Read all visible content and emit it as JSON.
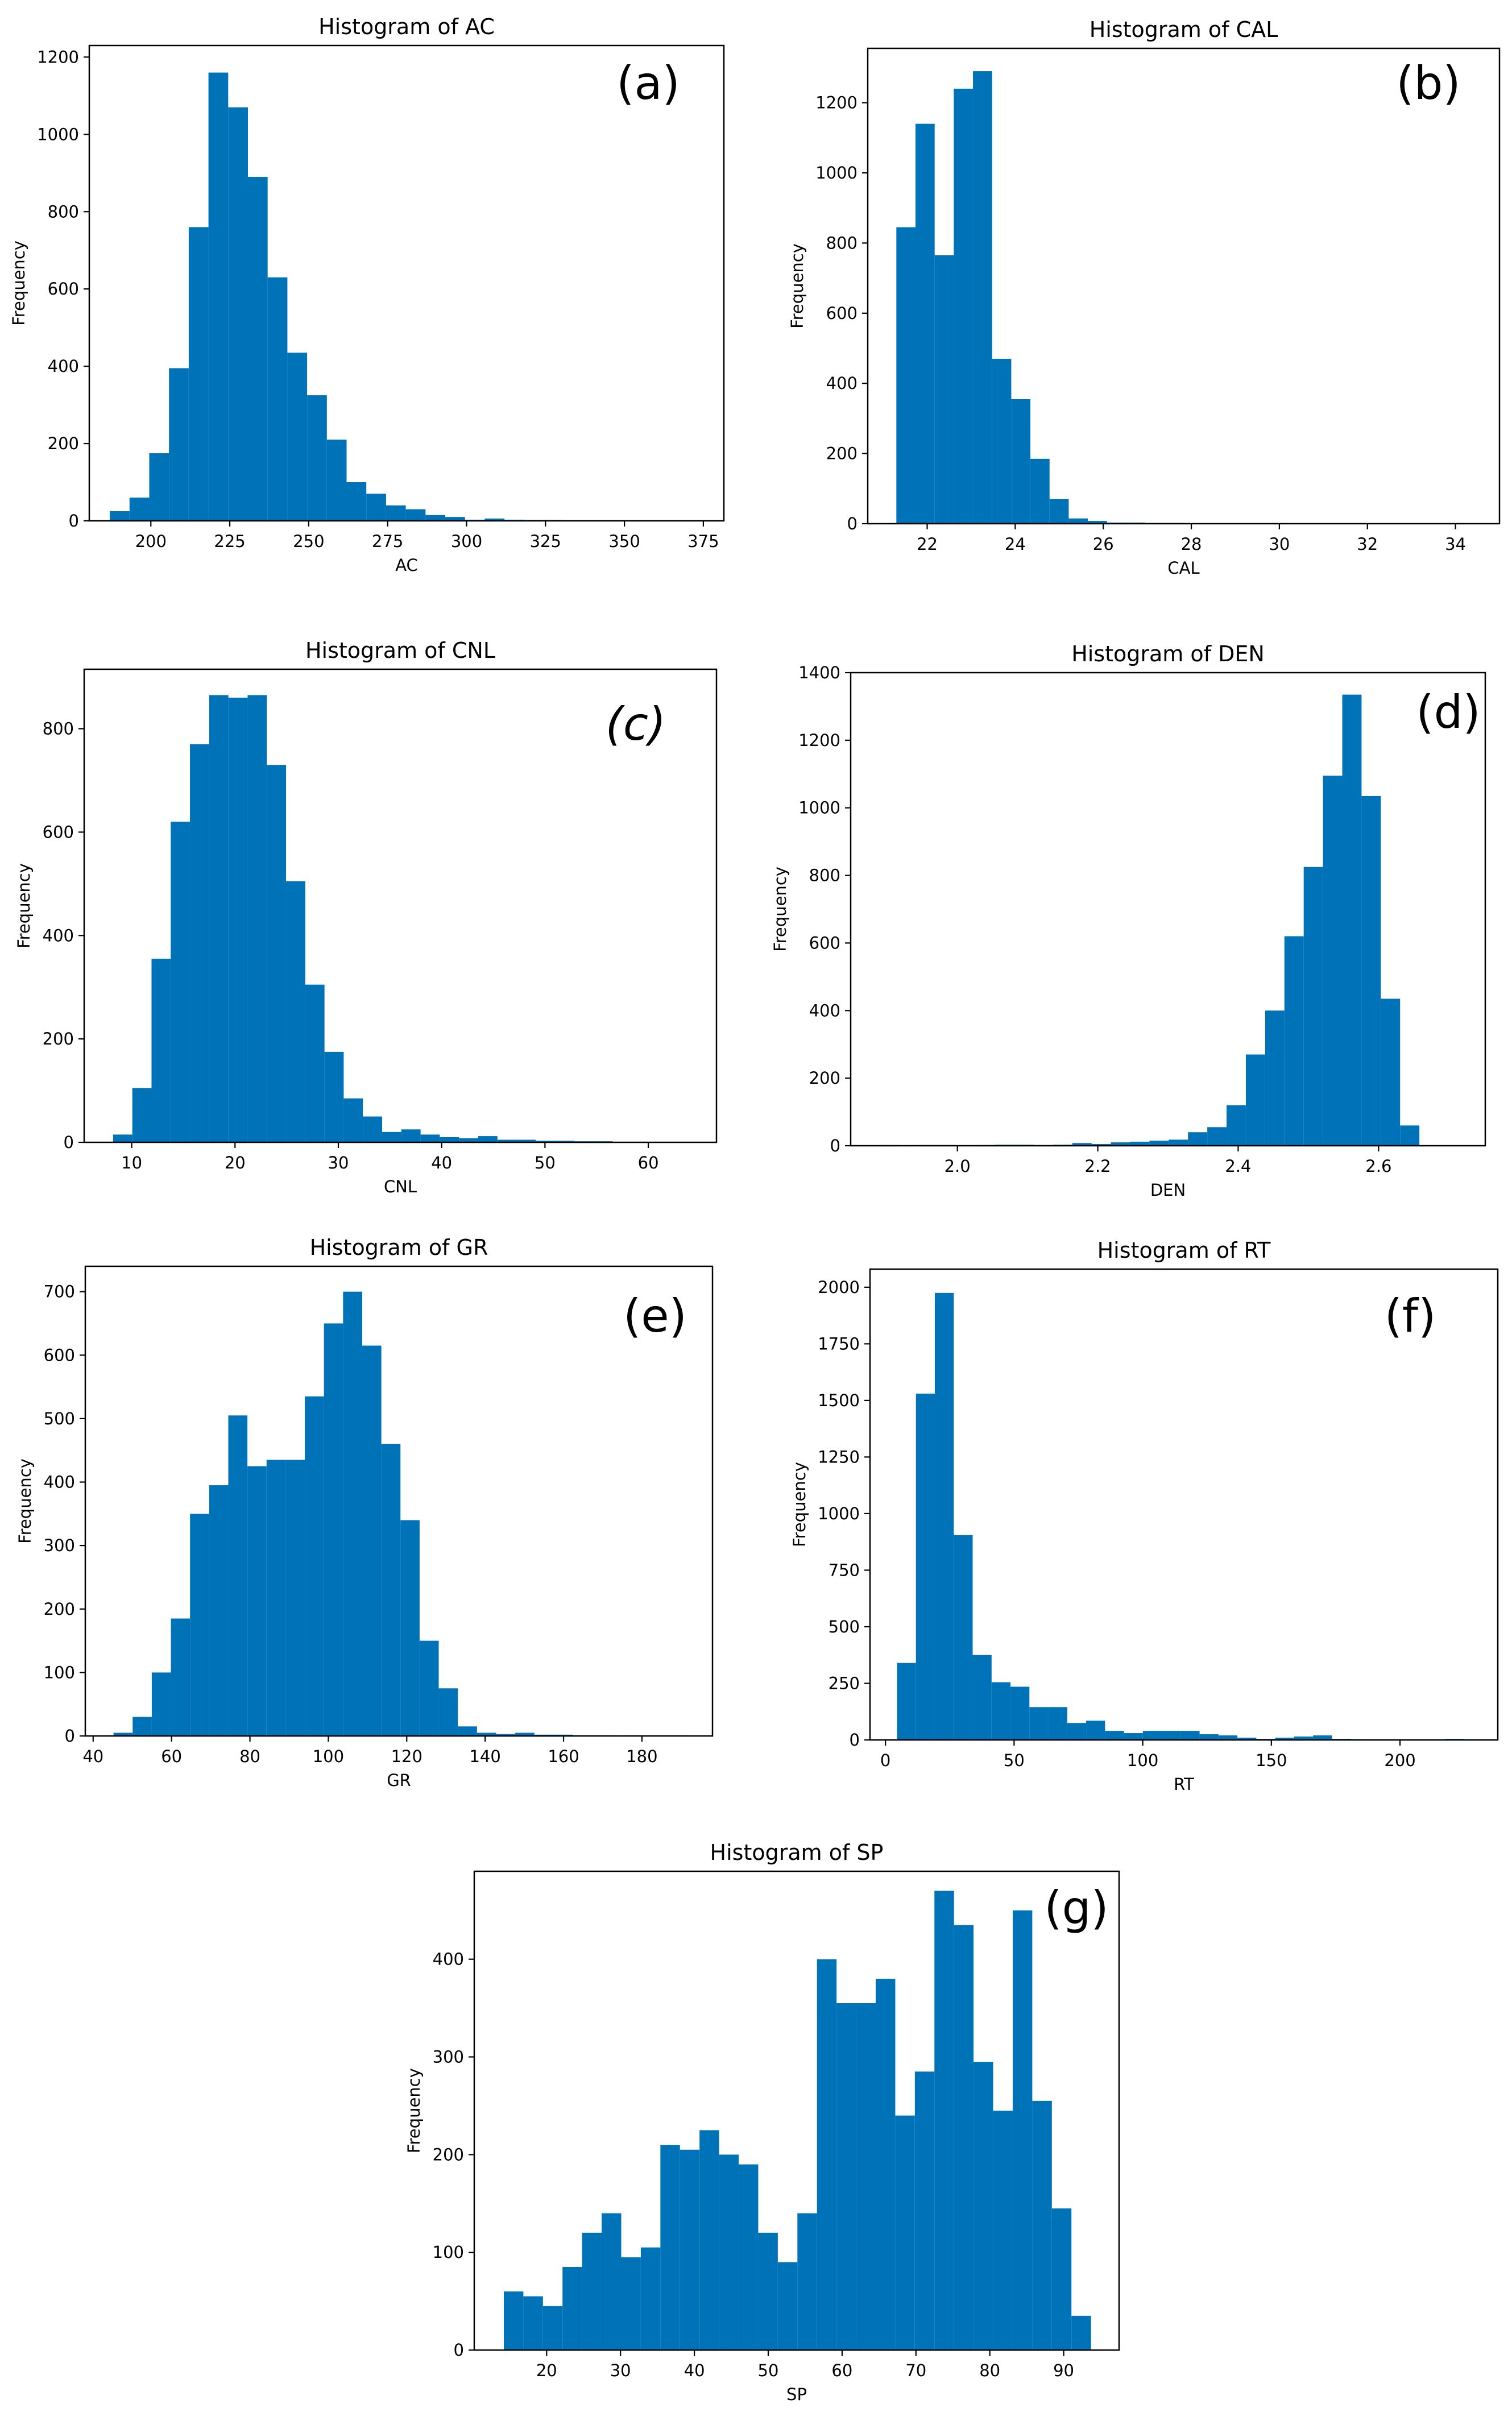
{
  "figure": {
    "bar_color": "#0072b8",
    "frame_color": "#000000"
  },
  "chart_data": [
    {
      "type": "bar",
      "id": "ac",
      "title": "Histogram of AC",
      "xlabel": "AC",
      "ylabel": "Frequency",
      "panel_label": "(a)",
      "xlim": [
        180.5,
        381.5
      ],
      "ylim": [
        0,
        1230
      ],
      "bins_start": 187,
      "bin_width": 6.25,
      "values": [
        25,
        60,
        175,
        395,
        760,
        1160,
        1070,
        890,
        630,
        435,
        325,
        210,
        100,
        70,
        40,
        30,
        15,
        10,
        3,
        6,
        3,
        2,
        2,
        1,
        1,
        1,
        0,
        0,
        0,
        1
      ],
      "xticks": [
        200,
        225,
        250,
        275,
        300,
        325,
        350,
        375
      ],
      "yticks": [
        0,
        200,
        400,
        600,
        800,
        1000,
        1200
      ]
    },
    {
      "type": "bar",
      "id": "cal",
      "title": "Histogram of CAL",
      "xlabel": "CAL",
      "ylabel": "Frequency",
      "panel_label": "(b)",
      "xlim": [
        20.65,
        35.0
      ],
      "ylim": [
        0,
        1355
      ],
      "bins_start": 21.3,
      "bin_width": 0.435,
      "values": [
        845,
        1140,
        765,
        1240,
        1290,
        470,
        355,
        185,
        70,
        15,
        8,
        3,
        3,
        2,
        2,
        1,
        1,
        1,
        0,
        1,
        0,
        1,
        1,
        1,
        1,
        0,
        0,
        1,
        1,
        1
      ],
      "xticks": [
        22,
        24,
        26,
        28,
        30,
        32,
        34
      ],
      "yticks": [
        0,
        200,
        400,
        600,
        800,
        1000,
        1200
      ]
    },
    {
      "type": "bar",
      "id": "cnl",
      "title": "Histogram of CNL",
      "xlabel": "CNL",
      "ylabel": "Frequency",
      "panel_label": "(c)",
      "xlim": [
        5.4,
        66.6
      ],
      "ylim": [
        0,
        915
      ],
      "bins_start": 8.2,
      "bin_width": 1.86,
      "values": [
        15,
        105,
        355,
        620,
        770,
        865,
        860,
        865,
        730,
        505,
        305,
        175,
        85,
        50,
        20,
        25,
        15,
        10,
        8,
        12,
        5,
        5,
        3,
        3,
        2,
        2,
        1,
        1,
        0,
        1
      ],
      "xticks": [
        10,
        20,
        30,
        40,
        50,
        60
      ],
      "yticks": [
        0,
        200,
        400,
        600,
        800
      ]
    },
    {
      "type": "bar",
      "id": "den",
      "title": "Histogram of DEN",
      "xlabel": "DEN",
      "ylabel": "Frequency",
      "panel_label": "(d)",
      "xlim": [
        1.848,
        2.752
      ],
      "ylim": [
        0,
        1400
      ],
      "bins_start": 1.889,
      "bin_width": 0.02747,
      "values": [
        2,
        1,
        2,
        2,
        1,
        2,
        3,
        3,
        2,
        3,
        8,
        5,
        10,
        12,
        15,
        18,
        40,
        55,
        120,
        270,
        400,
        620,
        825,
        1095,
        1335,
        1035,
        435,
        60,
        0,
        0
      ],
      "xticks": [
        2.0,
        2.2,
        2.4,
        2.6
      ],
      "ytick_labels": [
        "0",
        "200",
        "400",
        "600",
        "800",
        "1000",
        "1200",
        "1400"
      ],
      "yticks": [
        0,
        200,
        400,
        600,
        800,
        1000,
        1200,
        1400
      ]
    },
    {
      "type": "bar",
      "id": "gr",
      "title": "Histogram of GR",
      "xlabel": "GR",
      "ylabel": "Frequency",
      "panel_label": "(e)",
      "xlim": [
        38.0,
        198.0
      ],
      "ylim": [
        0,
        740
      ],
      "bins_start": 45.2,
      "bin_width": 4.88,
      "values": [
        5,
        30,
        100,
        185,
        350,
        395,
        505,
        425,
        435,
        435,
        535,
        650,
        700,
        615,
        460,
        340,
        150,
        75,
        15,
        5,
        3,
        5,
        2,
        2,
        1,
        1,
        0,
        1,
        1,
        1
      ],
      "xticks": [
        40,
        60,
        80,
        100,
        120,
        140,
        160,
        180
      ],
      "yticks": [
        0,
        100,
        200,
        300,
        400,
        500,
        600,
        700
      ]
    },
    {
      "type": "bar",
      "id": "rt",
      "title": "Histogram of RT",
      "xlabel": "RT",
      "ylabel": "Frequency",
      "panel_label": "(f)",
      "xlim": [
        -6.0,
        238.0
      ],
      "ylim": [
        0,
        2080
      ],
      "bins_start": 4.5,
      "bin_width": 7.35,
      "values": [
        340,
        1530,
        1975,
        905,
        375,
        255,
        235,
        145,
        145,
        75,
        85,
        40,
        30,
        40,
        40,
        40,
        25,
        20,
        10,
        5,
        10,
        15,
        20,
        5,
        3,
        2,
        2,
        1,
        1,
        5
      ],
      "xticks": [
        0,
        50,
        100,
        150,
        200
      ],
      "yticks": [
        0,
        250,
        500,
        750,
        1000,
        1250,
        1500,
        1750,
        2000
      ]
    },
    {
      "type": "bar",
      "id": "sp",
      "title": "Histogram of SP",
      "xlabel": "SP",
      "ylabel": "Frequency",
      "panel_label": "(g)",
      "xlim": [
        10.2,
        97.5
      ],
      "ylim": [
        0,
        490
      ],
      "bins_start": 14.2,
      "bin_width": 2.65,
      "values": [
        60,
        55,
        45,
        85,
        120,
        140,
        95,
        105,
        210,
        205,
        225,
        200,
        190,
        120,
        90,
        140,
        400,
        355,
        355,
        380,
        240,
        285,
        470,
        435,
        295,
        245,
        450,
        255,
        145,
        35
      ],
      "xticks": [
        20,
        30,
        40,
        50,
        60,
        70,
        80,
        90
      ],
      "yticks": [
        0,
        100,
        200,
        300,
        400
      ]
    }
  ]
}
